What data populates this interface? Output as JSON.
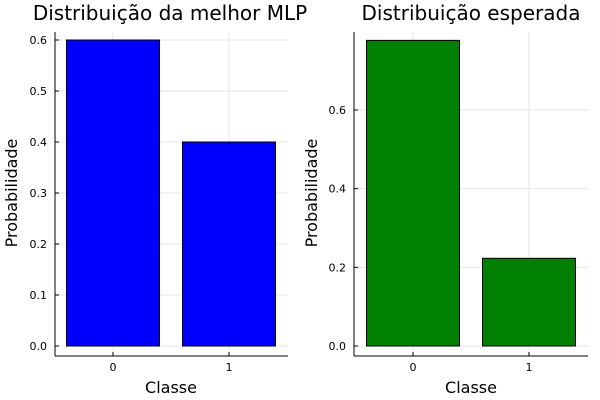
{
  "chart_data": [
    {
      "type": "bar",
      "title": "Distribuição da melhor MLP",
      "xlabel": "Classe",
      "ylabel": "Probabilidade",
      "categories": [
        "0",
        "1"
      ],
      "values": [
        0.6,
        0.4
      ],
      "color": "#0000ff",
      "ylim": [
        0,
        0.615
      ],
      "yticks": [
        "0.0",
        "0.1",
        "0.2",
        "0.3",
        "0.4",
        "0.5",
        "0.6"
      ],
      "grid": true
    },
    {
      "type": "bar",
      "title": "Distribuição esperada",
      "xlabel": "Classe",
      "ylabel": "Probabilidade",
      "categories": [
        "0",
        "1"
      ],
      "values": [
        0.777,
        0.223
      ],
      "color": "#008000",
      "ylim": [
        0,
        0.8
      ],
      "yticks": [
        "0.0",
        "0.2",
        "0.4",
        "0.6"
      ],
      "grid": true
    }
  ]
}
